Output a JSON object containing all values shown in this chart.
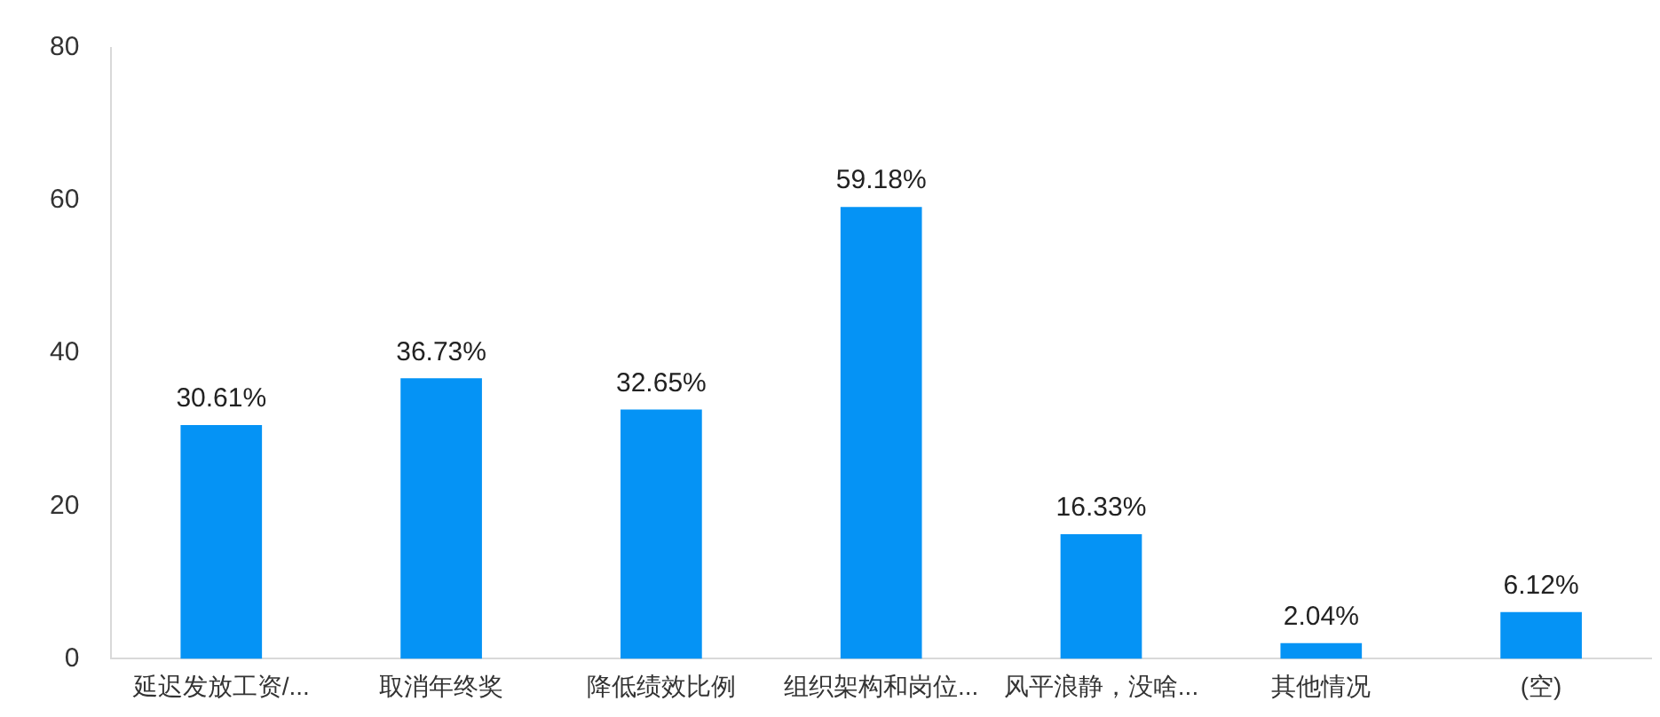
{
  "chart_data": {
    "type": "bar",
    "categories": [
      "延迟发放工资/...",
      "取消年终奖",
      "降低绩效比例",
      "组织架构和岗位...",
      "风平浪静，没啥...",
      "其他情况",
      "(空)"
    ],
    "values": [
      30.61,
      36.73,
      32.65,
      59.18,
      16.33,
      2.04,
      6.12
    ],
    "value_labels": [
      "30.61%",
      "36.73%",
      "32.65%",
      "59.18%",
      "16.33%",
      "2.04%",
      "6.12%"
    ],
    "color": "#0593f5",
    "ylim": [
      0,
      80
    ],
    "yticks": [
      0,
      20,
      40,
      60,
      80
    ],
    "grid": false,
    "legend": false
  }
}
